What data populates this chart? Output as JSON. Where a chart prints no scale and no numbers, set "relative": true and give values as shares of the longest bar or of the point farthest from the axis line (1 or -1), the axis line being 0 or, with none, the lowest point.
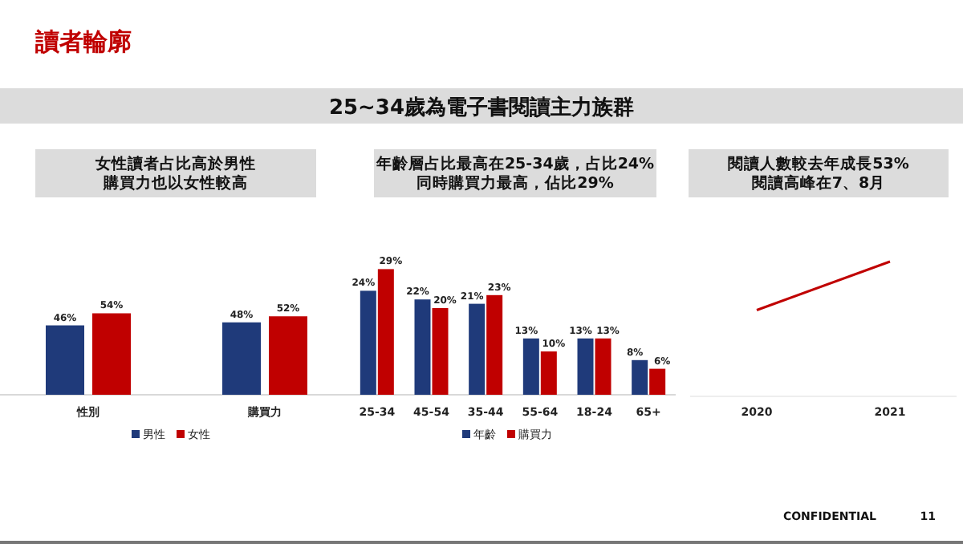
{
  "chart_data": [
    {
      "type": "other",
      "title": "讀者輪廓",
      "subtitle": "25~34歲為電子書閱讀主力族群",
      "annotations": [
        "CONFIDENTIAL",
        "11"
      ]
    },
    {
      "type": "bar",
      "title": "女性讀者占比高於男性購買力也以女性較高",
      "categories": [
        "性別",
        "購買力"
      ],
      "legend": "bottom",
      "series": [
        {
          "name": "男性",
          "color": "#1f3a7a",
          "values": [
            46,
            48
          ],
          "value_labels": [
            "46%",
            "48%"
          ]
        },
        {
          "name": "女性",
          "color": "#c00000",
          "values": [
            54,
            52
          ],
          "value_labels": [
            "54%",
            "52%"
          ]
        }
      ]
    },
    {
      "type": "bar",
      "title": "年齡層占比最高在25-34歲，占比24%同時購買力最高，佔比29%",
      "categories": [
        "25-34",
        "45-54",
        "35-44",
        "55-64",
        "18-24",
        "65+"
      ],
      "legend": "bottom",
      "series": [
        {
          "name": "年齡",
          "color": "#1f3a7a",
          "values": [
            24,
            22,
            21,
            13,
            13,
            8
          ],
          "value_labels": [
            "24%",
            "22%",
            "21%",
            "13%",
            "13%",
            "8%"
          ]
        },
        {
          "name": "購買力",
          "color": "#c00000",
          "values": [
            29,
            20,
            23,
            10,
            13,
            6
          ],
          "value_labels": [
            "29%",
            "20%",
            "23%",
            "10%",
            "13%",
            "6%"
          ]
        }
      ]
    },
    {
      "type": "line",
      "title": "閱讀人數較去年成長53%閱讀高峰在7、8月",
      "categories": [
        "2020",
        "2021"
      ],
      "relative": true,
      "series": [
        {
          "color": "#c00000",
          "values": [
            0.64,
            1
          ]
        }
      ]
    }
  ]
}
